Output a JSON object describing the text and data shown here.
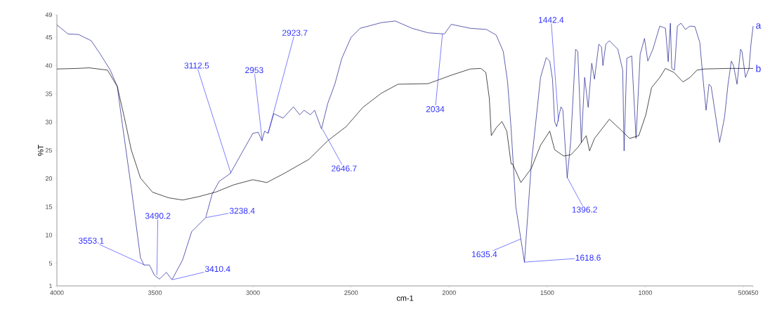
{
  "chart_data": {
    "type": "line",
    "xlabel": "cm-1",
    "ylabel": "%T",
    "xlim": [
      4000,
      450
    ],
    "ylim": [
      1,
      49
    ],
    "xticks": [
      4000,
      3500,
      3000,
      2500,
      2000,
      1500,
      1000,
      500,
      450
    ],
    "yticks": [
      1,
      5,
      10,
      15,
      20,
      25,
      30,
      35,
      40,
      45,
      49
    ],
    "grid": false,
    "legend": false,
    "marker": "none",
    "line_style": "solid",
    "series": [
      {
        "name": "a",
        "color": "#1c1c8c",
        "x": [
          4000,
          3943,
          3889,
          3825,
          3778,
          3728,
          3692,
          3671,
          3621,
          3574,
          3556,
          3528,
          3503,
          3477,
          3442,
          3413,
          3359,
          3313,
          3241,
          3209,
          3173,
          3116,
          3048,
          3001,
          2973,
          2955,
          2941,
          2923,
          2894,
          2847,
          2794,
          2762,
          2740,
          2708,
          2686,
          2651,
          2619,
          2583,
          2547,
          2500,
          2454,
          2346,
          2275,
          2189,
          2107,
          2024,
          1989,
          1892,
          1810,
          1760,
          1724,
          1702,
          1684,
          1660,
          1616,
          1581,
          1534,
          1505,
          1487,
          1473,
          1462,
          1452,
          1430,
          1420,
          1398,
          1380,
          1355,
          1344,
          1326,
          1309,
          1291,
          1273,
          1259,
          1237,
          1223,
          1216,
          1201,
          1183,
          1140,
          1115,
          1108,
          1094,
          1069,
          1047,
          1026,
          1004,
          987,
          961,
          926,
          897,
          883,
          872,
          865,
          851,
          836,
          818,
          795,
          772,
          747,
          722,
          704,
          690,
          675,
          664,
          621,
          596,
          578,
          561,
          550,
          532,
          514,
          507,
          489,
          471,
          461,
          450
        ],
        "values": [
          47.2,
          45.6,
          45.5,
          44.4,
          42.0,
          39.2,
          36.3,
          30.8,
          18.4,
          6.0,
          4.7,
          4.7,
          2.9,
          2.2,
          3.4,
          2.1,
          5.6,
          10.6,
          13.1,
          17.2,
          19.5,
          20.9,
          25.1,
          28.0,
          28.2,
          26.7,
          28.4,
          28.0,
          31.5,
          30.7,
          32.7,
          31.3,
          32.1,
          31.3,
          32.1,
          28.8,
          33.3,
          36.7,
          41.3,
          45.0,
          46.6,
          47.6,
          47.9,
          46.6,
          45.8,
          45.6,
          47.3,
          46.6,
          46.4,
          45.4,
          42.5,
          37.1,
          28.8,
          15.0,
          5.2,
          22.6,
          37.9,
          41.4,
          40.8,
          37.6,
          30.1,
          29.2,
          32.7,
          32.1,
          20.1,
          26.7,
          42.9,
          42.5,
          26.4,
          37.9,
          32.6,
          40.4,
          37.6,
          43.8,
          43.3,
          40.0,
          43.8,
          44.4,
          42.9,
          39.2,
          24.9,
          41.3,
          41.7,
          27.1,
          42.0,
          44.8,
          40.8,
          42.9,
          47.0,
          46.6,
          40.7,
          47.5,
          39.5,
          39.2,
          47.0,
          47.5,
          46.4,
          47.0,
          46.9,
          44.1,
          37.1,
          32.1,
          36.7,
          36.3,
          26.4,
          30.8,
          36.7,
          40.8,
          40.0,
          36.7,
          42.9,
          42.5,
          37.9,
          39.5,
          43.8,
          47.0
        ]
      },
      {
        "name": "b",
        "color": "#000000",
        "x": [
          4000,
          3896,
          3835,
          3742,
          3692,
          3656,
          3621,
          3574,
          3513,
          3431,
          3359,
          3277,
          3191,
          3098,
          3001,
          2930,
          2847,
          2715,
          2619,
          2525,
          2440,
          2346,
          2261,
          2107,
          1989,
          1892,
          1838,
          1813,
          1795,
          1785,
          1760,
          1731,
          1706,
          1684,
          1677,
          1634,
          1581,
          1534,
          1487,
          1462,
          1416,
          1380,
          1344,
          1301,
          1284,
          1259,
          1183,
          1130,
          1080,
          1033,
          997,
          968,
          926,
          897,
          854,
          808,
          772,
          736,
          700,
          578,
          450
        ],
        "values": [
          39.4,
          39.5,
          39.6,
          39.2,
          36.3,
          30.8,
          25.1,
          20.1,
          17.6,
          16.6,
          16.2,
          16.8,
          17.6,
          18.9,
          19.8,
          19.3,
          20.8,
          23.4,
          26.7,
          29.2,
          32.6,
          35.1,
          36.7,
          36.8,
          38.3,
          39.4,
          39.5,
          38.8,
          34.2,
          27.6,
          29.0,
          30.1,
          28.4,
          22.6,
          22.6,
          19.3,
          21.8,
          25.9,
          28.4,
          25.1,
          24.0,
          24.2,
          25.5,
          27.6,
          24.9,
          27.1,
          30.5,
          28.8,
          27.1,
          27.6,
          31.3,
          36.1,
          37.9,
          39.5,
          38.8,
          37.1,
          37.9,
          39.2,
          39.4,
          39.5,
          39.5
        ]
      }
    ],
    "annotations": [
      {
        "text": "3553.1",
        "x": 3553.1,
        "y": 4.7
      },
      {
        "text": "3490.2",
        "x": 3490.2,
        "y": 2.9
      },
      {
        "text": "3410.4",
        "x": 3410.4,
        "y": 2.1
      },
      {
        "text": "3238.4",
        "x": 3238.4,
        "y": 13.1
      },
      {
        "text": "3112.5",
        "x": 3112.5,
        "y": 20.9
      },
      {
        "text": "2953",
        "x": 2953,
        "y": 26.7
      },
      {
        "text": "2923.7",
        "x": 2923.7,
        "y": 28.0
      },
      {
        "text": "2646.7",
        "x": 2646.7,
        "y": 28.8
      },
      {
        "text": "2034",
        "x": 2034,
        "y": 45.6
      },
      {
        "text": "1442.4",
        "x": 1442.4,
        "y": 30.1
      },
      {
        "text": "1396.2",
        "x": 1396.2,
        "y": 20.1
      },
      {
        "text": "1635.4",
        "x": 1635.4,
        "y": 9.3
      },
      {
        "text": "1618.6",
        "x": 1618.6,
        "y": 5.2
      }
    ]
  }
}
